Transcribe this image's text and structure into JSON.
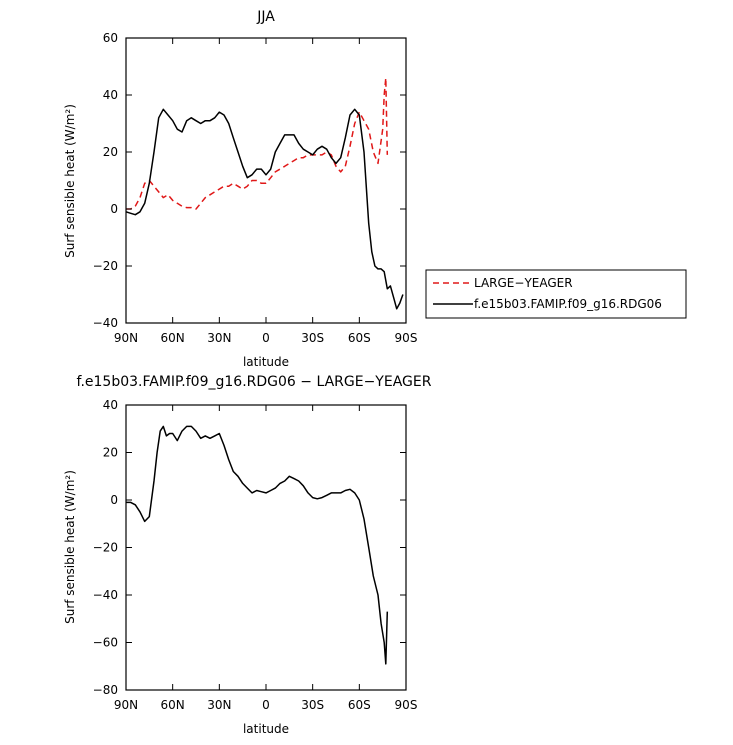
{
  "chart_data": [
    {
      "type": "line",
      "title": "JJA",
      "xlabel": "latitude",
      "ylabel": "Surf sensible heat (W/m²)",
      "xlim": [
        90,
        -90
      ],
      "ylim": [
        -40,
        60
      ],
      "x_ticks": [
        90,
        60,
        30,
        0,
        -30,
        -60,
        -90
      ],
      "x_tick_labels": [
        "90N",
        "60N",
        "30N",
        "0",
        "30S",
        "60S",
        "90S"
      ],
      "y_ticks": [
        -40,
        -20,
        0,
        20,
        40,
        60
      ],
      "y_tick_labels": [
        "−40",
        "−20",
        "0",
        "20",
        "40",
        "60"
      ],
      "legend_position": "right",
      "series": [
        {
          "name": "LARGE−YEAGER",
          "color": "#e01818",
          "dash": "dashed",
          "x": [
            90,
            87,
            84,
            81,
            78,
            75,
            72,
            69,
            66,
            63,
            60,
            57,
            54,
            51,
            48,
            45,
            42,
            39,
            36,
            33,
            30,
            27,
            24,
            21,
            18,
            15,
            12,
            9,
            6,
            3,
            0,
            -3,
            -6,
            -9,
            -12,
            -15,
            -18,
            -21,
            -24,
            -27,
            -30,
            -33,
            -36,
            -39,
            -42,
            -45,
            -48,
            -51,
            -54,
            -57,
            -60,
            -63,
            -66,
            -69,
            -72,
            -75,
            -76,
            -77,
            -78
          ],
          "y": [
            0,
            0,
            1,
            4,
            9,
            10,
            8,
            6,
            4,
            5,
            3,
            2,
            1,
            0.5,
            0.5,
            0,
            2,
            4,
            5,
            6,
            7,
            8,
            8,
            9,
            8,
            7,
            8,
            10,
            10,
            9,
            9,
            11,
            13,
            14,
            15,
            16,
            17,
            18,
            18,
            19,
            19,
            19,
            19,
            20,
            19,
            15,
            13,
            15,
            22,
            30,
            34,
            31,
            28,
            20,
            16,
            28,
            40,
            46,
            19
          ]
        },
        {
          "name": "f.e15b03.FAMIP.f09_g16.RDG06",
          "color": "#000000",
          "dash": "solid",
          "x": [
            90,
            87,
            84,
            81,
            78,
            75,
            72,
            69,
            66,
            63,
            60,
            57,
            54,
            51,
            48,
            45,
            42,
            39,
            36,
            33,
            30,
            27,
            24,
            21,
            18,
            15,
            12,
            9,
            6,
            3,
            0,
            -3,
            -6,
            -9,
            -12,
            -15,
            -18,
            -21,
            -24,
            -27,
            -30,
            -33,
            -36,
            -39,
            -42,
            -45,
            -48,
            -51,
            -54,
            -57,
            -60,
            -63,
            -66,
            -68,
            -70,
            -72,
            -74,
            -76,
            -78,
            -80,
            -82,
            -84,
            -86,
            -88
          ],
          "y": [
            -1,
            -1.5,
            -2,
            -1,
            2,
            9,
            20,
            32,
            35,
            33,
            31,
            28,
            27,
            31,
            32,
            31,
            30,
            31,
            31,
            32,
            34,
            33,
            30,
            25,
            20,
            15,
            11,
            12,
            14,
            14,
            12,
            14,
            20,
            23,
            26,
            26,
            26,
            23,
            21,
            20,
            19,
            21,
            22,
            21,
            18,
            16,
            18,
            25,
            33,
            35,
            33,
            20,
            -5,
            -15,
            -20,
            -21,
            -21,
            -22,
            -28,
            -27,
            -31,
            -35,
            -33,
            -30
          ]
        }
      ]
    },
    {
      "type": "line",
      "title": "f.e15b03.FAMIP.f09_g16.RDG06 − LARGE−YEAGER",
      "xlabel": "latitude",
      "ylabel": "Surf sensible heat (W/m²)",
      "xlim": [
        90,
        -90
      ],
      "ylim": [
        -80,
        40
      ],
      "x_ticks": [
        90,
        60,
        30,
        0,
        -30,
        -60,
        -90
      ],
      "x_tick_labels": [
        "90N",
        "60N",
        "30N",
        "0",
        "30S",
        "60S",
        "90S"
      ],
      "y_ticks": [
        -80,
        -60,
        -40,
        -20,
        0,
        20,
        40
      ],
      "y_tick_labels": [
        "−80",
        "−60",
        "−40",
        "−20",
        "0",
        "20",
        "40"
      ],
      "series": [
        {
          "color": "#000000",
          "dash": "solid",
          "x": [
            90,
            87,
            84,
            81,
            78,
            75,
            72,
            70,
            68,
            66,
            64,
            62,
            60,
            57,
            54,
            51,
            48,
            45,
            42,
            39,
            36,
            33,
            30,
            27,
            24,
            21,
            18,
            15,
            12,
            9,
            6,
            3,
            0,
            -3,
            -6,
            -9,
            -12,
            -15,
            -18,
            -21,
            -24,
            -27,
            -30,
            -33,
            -36,
            -39,
            -42,
            -45,
            -48,
            -51,
            -54,
            -57,
            -60,
            -63,
            -66,
            -69,
            -72,
            -74,
            -76,
            -77,
            -78
          ],
          "y": [
            -1,
            -1,
            -2,
            -5,
            -9,
            -7,
            8,
            20,
            29,
            31,
            27,
            28,
            28,
            25,
            29,
            31,
            31,
            29,
            26,
            27,
            26,
            27,
            28,
            23,
            17,
            12,
            10,
            7,
            5,
            3,
            4,
            3.5,
            3,
            4,
            5,
            7,
            8,
            10,
            9,
            8,
            6,
            3,
            1,
            0.5,
            1,
            2,
            3,
            3,
            3,
            4,
            4.5,
            3,
            0,
            -8,
            -20,
            -32,
            -40,
            -52,
            -60,
            -69,
            -47
          ]
        }
      ]
    }
  ]
}
